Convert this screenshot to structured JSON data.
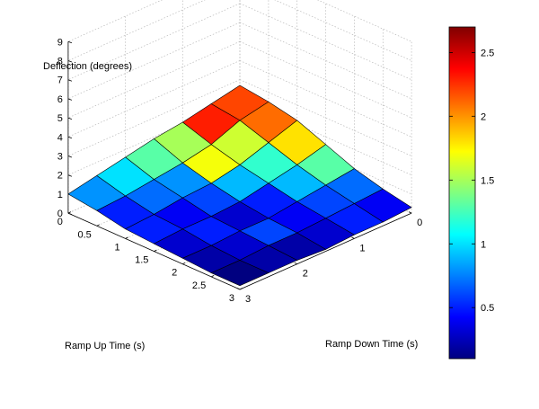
{
  "chart_data": {
    "type": "surface",
    "title": "",
    "zlabel": "Deflection (degrees)",
    "xlabel": "Ramp Up Time (s)",
    "ylabel": "Ramp Down Time (s)",
    "x_ticks": [
      "0",
      "0.5",
      "1",
      "1.5",
      "2",
      "2.5",
      "3"
    ],
    "y_ticks": [
      "0",
      "1",
      "2",
      "3"
    ],
    "z_ticks": [
      "0",
      "1",
      "2",
      "3",
      "4",
      "5",
      "6",
      "7",
      "8",
      "9"
    ],
    "colorbar_ticks": [
      "0.5",
      "1",
      "1.5",
      "2",
      "2.5"
    ],
    "colormap": "jet",
    "clim": [
      0.1,
      2.7
    ],
    "xlim": [
      0,
      3
    ],
    "ylim": [
      0,
      3
    ],
    "zlim": [
      0,
      9
    ],
    "grid": true,
    "x": [
      0,
      0.5,
      1,
      1.5,
      2,
      2.5,
      3
    ],
    "y": [
      0,
      0.5,
      1,
      1.5,
      2,
      2.5,
      3
    ],
    "z": [
      [
        2.7,
        2.4,
        2.1,
        1.9,
        1.6,
        1.3,
        1.0
      ],
      [
        2.5,
        2.2,
        1.6,
        1.3,
        1.1,
        0.9,
        0.8
      ],
      [
        2.2,
        1.7,
        1.2,
        0.9,
        0.8,
        0.6,
        0.5
      ],
      [
        1.6,
        1.2,
        0.9,
        0.6,
        0.5,
        0.5,
        0.4
      ],
      [
        1.0,
        0.8,
        0.6,
        0.4,
        0.4,
        0.3,
        0.3
      ],
      [
        0.6,
        0.5,
        0.4,
        0.3,
        0.3,
        0.2,
        0.2
      ],
      [
        0.3,
        0.2,
        0.2,
        0.1,
        0.2,
        0.2,
        0.2
      ]
    ],
    "patch_values": [
      [
        2.2,
        2.3,
        1.5,
        1.3,
        1.0,
        0.8
      ],
      [
        2.1,
        1.6,
        1.7,
        0.8,
        0.7,
        0.5
      ],
      [
        1.8,
        1.2,
        0.9,
        0.6,
        0.4,
        0.5
      ],
      [
        1.3,
        0.9,
        0.5,
        0.3,
        0.5,
        0.3
      ],
      [
        0.7,
        0.6,
        0.4,
        0.6,
        0.3,
        0.2
      ],
      [
        0.4,
        0.5,
        0.3,
        0.2,
        0.2,
        0.1
      ]
    ]
  }
}
